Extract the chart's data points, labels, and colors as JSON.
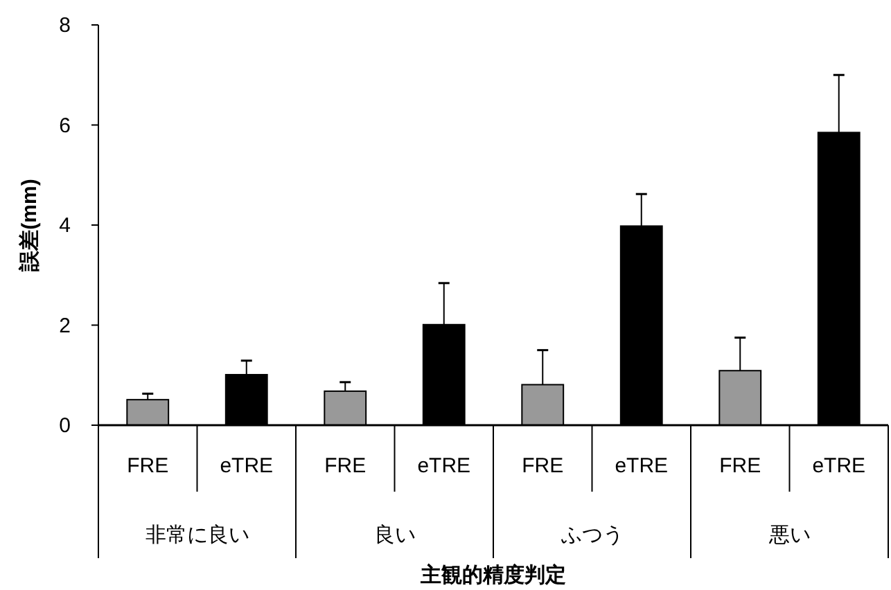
{
  "chart_data": {
    "type": "bar",
    "xlabel": "主観的精度判定",
    "ylabel": "誤差(mm)",
    "categories": [
      "FRE",
      "eTRE",
      "FRE",
      "eTRE",
      "FRE",
      "eTRE",
      "FRE",
      "eTRE"
    ],
    "values": [
      0.51,
      1.01,
      0.68,
      2.01,
      0.81,
      3.98,
      1.09,
      5.85
    ],
    "errors": [
      [
        0.51,
        0.63
      ],
      [
        1.01,
        1.29
      ],
      [
        0.68,
        0.86
      ],
      [
        2.01,
        2.84
      ],
      [
        0.81,
        1.5
      ],
      [
        3.98,
        4.62
      ],
      [
        1.09,
        1.75
      ],
      [
        5.85,
        7.0
      ]
    ],
    "colors": [
      "#999999",
      "#000000",
      "#999999",
      "#000000",
      "#999999",
      "#000000",
      "#999999",
      "#000000"
    ],
    "annotations": [
      "非常に良い",
      "良い",
      "ふつう",
      "悪い"
    ],
    "ylim": [
      0,
      8
    ],
    "yticks": [
      0,
      2,
      4,
      6,
      8
    ],
    "grid": false
  }
}
